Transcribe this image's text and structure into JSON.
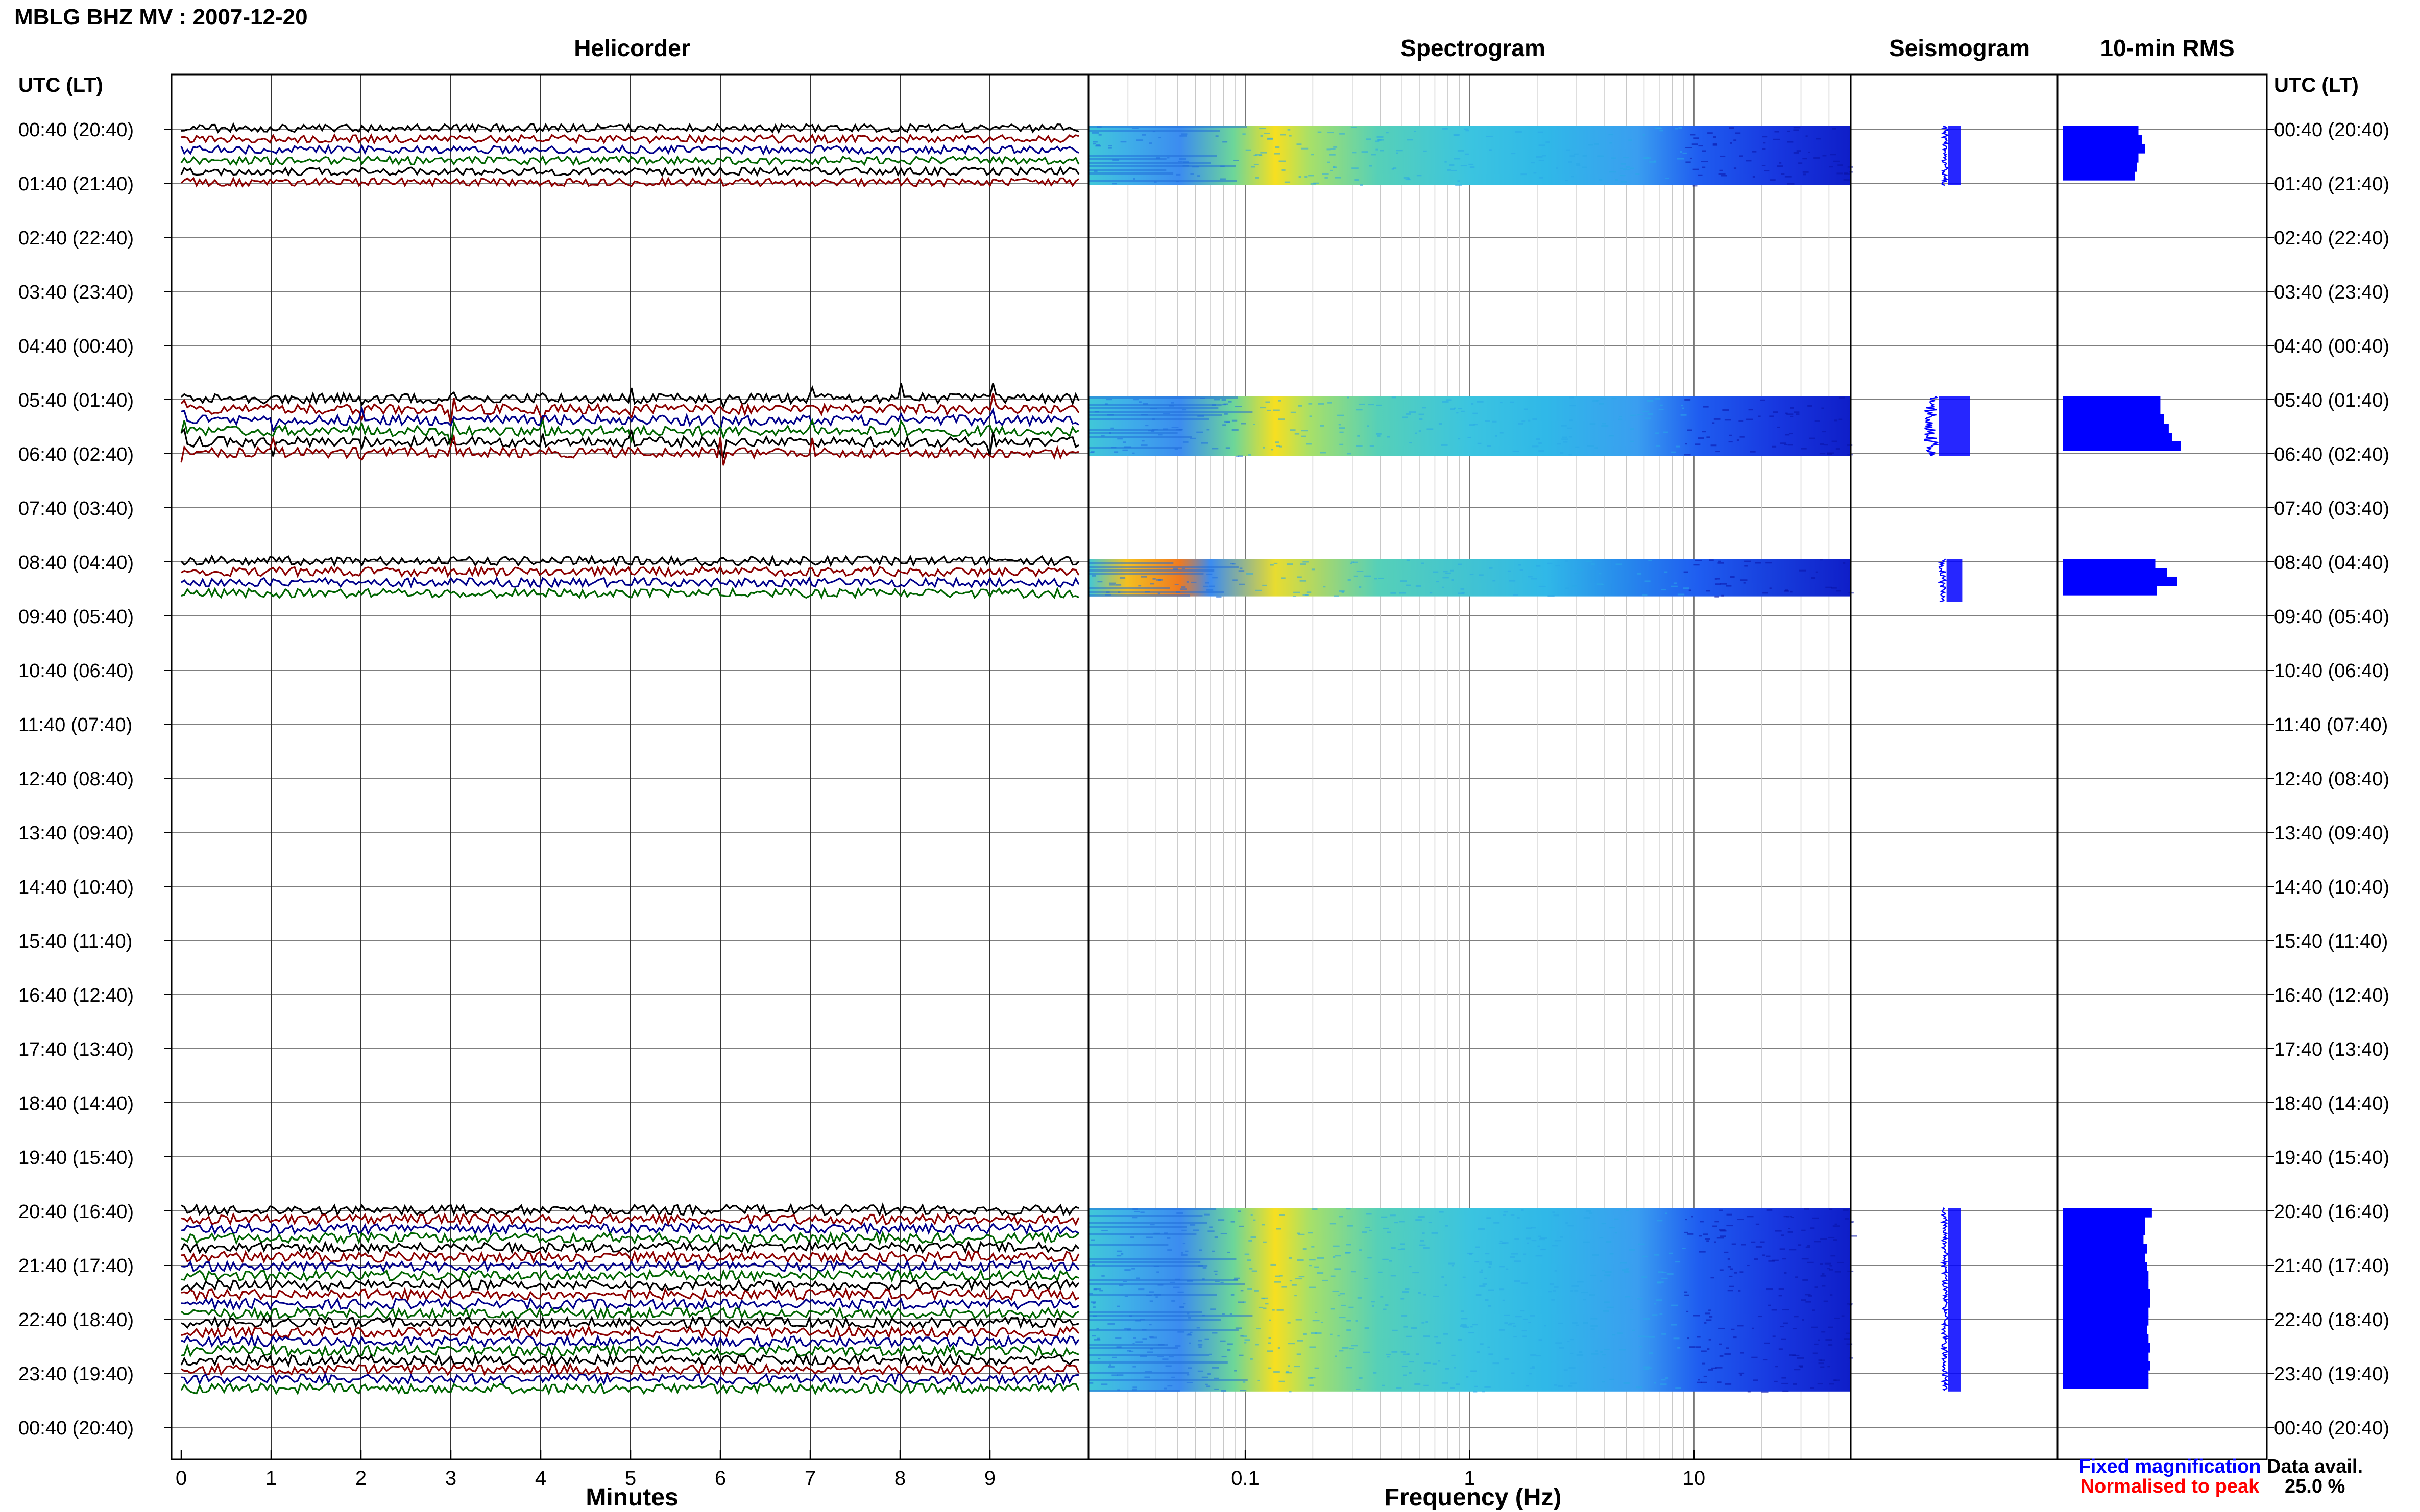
{
  "header": {
    "title": "MBLG BHZ MV : 2007-12-20",
    "utc_label_left": "UTC (LT)",
    "utc_label_right": "UTC (LT)"
  },
  "panels": {
    "helicorder": "Helicorder",
    "spectrogram": "Spectrogram",
    "seismogram": "Seismogram",
    "rms": "10-min RMS"
  },
  "chart_data": {
    "type": "helicorder-spectrogram-composite",
    "rows": [
      "00:40 (20:40)",
      "01:40 (21:40)",
      "02:40 (22:40)",
      "03:40 (23:40)",
      "04:40 (00:40)",
      "05:40 (01:40)",
      "06:40 (02:40)",
      "07:40 (03:40)",
      "08:40 (04:40)",
      "09:40 (05:40)",
      "10:40 (06:40)",
      "11:40 (07:40)",
      "12:40 (08:40)",
      "13:40 (09:40)",
      "14:40 (10:40)",
      "15:40 (11:40)",
      "16:40 (12:40)",
      "17:40 (13:40)",
      "18:40 (14:40)",
      "19:40 (15:40)",
      "20:40 (16:40)",
      "21:40 (17:40)",
      "22:40 (18:40)",
      "23:40 (19:40)",
      "00:40 (20:40)"
    ],
    "helicorder": {
      "xlabel": "Minutes",
      "xticks": [
        "0",
        "1",
        "2",
        "3",
        "4",
        "5",
        "6",
        "7",
        "8",
        "9"
      ],
      "xlim": [
        0,
        10
      ],
      "trace_colors": [
        "#000000",
        "#8b0000",
        "#00008b",
        "#006400"
      ],
      "data_segments": [
        {
          "start_hour": 0,
          "end_hour": 1,
          "traces": 6,
          "amplitude": 0.35
        },
        {
          "start_hour": 5,
          "end_hour": 6,
          "traces": 6,
          "amplitude": 0.45,
          "impulses_per_minute": 1
        },
        {
          "start_hour": 8,
          "end_hour": 8.6,
          "traces": 4,
          "amplitude": 0.4
        },
        {
          "start_hour": 20,
          "end_hour": 23.3,
          "traces": 20,
          "amplitude": 0.45
        }
      ]
    },
    "spectrogram": {
      "xlabel": "Frequency (Hz)",
      "xscale": "log",
      "xlim": [
        0.02,
        50
      ],
      "xticks": [
        "0.1",
        "1",
        "10"
      ],
      "colormap": "jet",
      "peak_frequency_hz": 0.22
    },
    "seismogram": {
      "segments": [
        {
          "start_hour": 0,
          "end_hour": 1,
          "width": 0.22
        },
        {
          "start_hour": 5,
          "end_hour": 6,
          "width": 0.55
        },
        {
          "start_hour": 8,
          "end_hour": 8.7,
          "width": 0.28
        },
        {
          "start_hour": 20,
          "end_hour": 23.3,
          "width": 0.22
        }
      ]
    },
    "rms": {
      "bar_values": [
        {
          "hour": 0.0,
          "value": 0.45
        },
        {
          "hour": 0.17,
          "value": 0.47
        },
        {
          "hour": 0.33,
          "value": 0.49
        },
        {
          "hour": 0.5,
          "value": 0.45
        },
        {
          "hour": 0.67,
          "value": 0.44
        },
        {
          "hour": 0.83,
          "value": 0.43
        },
        {
          "hour": 5.0,
          "value": 0.58
        },
        {
          "hour": 5.17,
          "value": 0.58
        },
        {
          "hour": 5.33,
          "value": 0.6
        },
        {
          "hour": 5.5,
          "value": 0.63
        },
        {
          "hour": 5.67,
          "value": 0.65
        },
        {
          "hour": 5.83,
          "value": 0.7
        },
        {
          "hour": 8.0,
          "value": 0.55
        },
        {
          "hour": 8.17,
          "value": 0.62
        },
        {
          "hour": 8.33,
          "value": 0.68
        },
        {
          "hour": 8.5,
          "value": 0.56
        },
        {
          "hour": 20.0,
          "value": 0.53
        },
        {
          "hour": 20.17,
          "value": 0.49
        },
        {
          "hour": 20.33,
          "value": 0.49
        },
        {
          "hour": 20.5,
          "value": 0.48
        },
        {
          "hour": 20.67,
          "value": 0.5
        },
        {
          "hour": 20.83,
          "value": 0.49
        },
        {
          "hour": 21.0,
          "value": 0.5
        },
        {
          "hour": 21.17,
          "value": 0.51
        },
        {
          "hour": 21.33,
          "value": 0.51
        },
        {
          "hour": 21.5,
          "value": 0.52
        },
        {
          "hour": 21.67,
          "value": 0.52
        },
        {
          "hour": 21.83,
          "value": 0.51
        },
        {
          "hour": 22.0,
          "value": 0.51
        },
        {
          "hour": 22.17,
          "value": 0.5
        },
        {
          "hour": 22.33,
          "value": 0.51
        },
        {
          "hour": 22.5,
          "value": 0.52
        },
        {
          "hour": 22.67,
          "value": 0.51
        },
        {
          "hour": 22.83,
          "value": 0.52
        },
        {
          "hour": 23.0,
          "value": 0.51
        },
        {
          "hour": 23.17,
          "value": 0.51
        }
      ]
    }
  },
  "legend": {
    "fixed": "Fixed magnification",
    "normalised": "Normalised to peak",
    "fixed_color": "#0000ff",
    "normalised_color": "#ff0000"
  },
  "availability": {
    "label": "Data avail.",
    "value": "25.0 %"
  }
}
